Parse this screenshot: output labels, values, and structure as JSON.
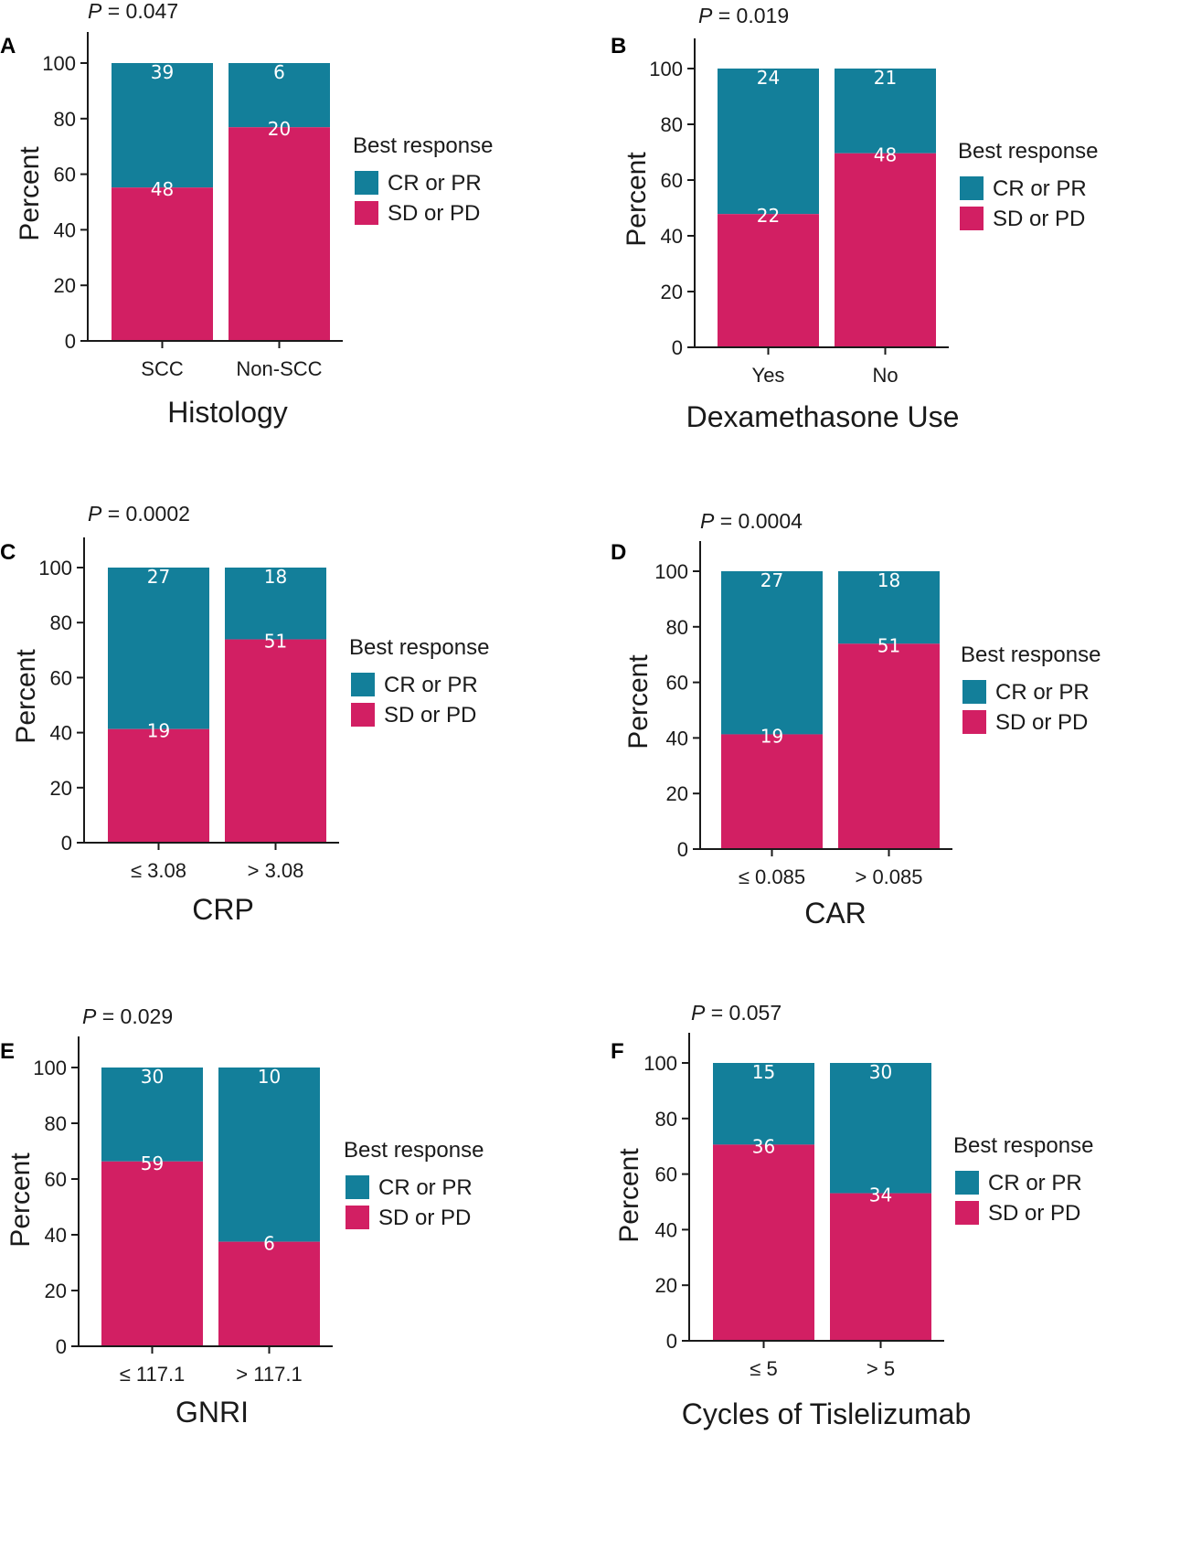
{
  "colors": {
    "cr_pr": "#137f9a",
    "sd_pd": "#d21f63"
  },
  "legend": {
    "title": "Best response",
    "items": [
      "CR or PR",
      "SD or PD"
    ]
  },
  "chart_data": [
    {
      "type": "bar",
      "panel": "A",
      "p_label": "P",
      "p_value": "= 0.047",
      "xlabel": "Histology",
      "ylabel": "Percent",
      "ylim": [
        0,
        110
      ],
      "yticks": [
        0,
        20,
        40,
        60,
        80,
        100
      ],
      "categories": [
        "SCC",
        "Non-SCC"
      ],
      "series": [
        {
          "name": "SD or PD",
          "values": [
            55.2,
            76.9
          ],
          "counts": [
            "48",
            "20"
          ]
        },
        {
          "name": "CR or PR",
          "values": [
            44.8,
            23.1
          ],
          "counts": [
            "39",
            "6"
          ]
        }
      ]
    },
    {
      "type": "bar",
      "panel": "B",
      "p_label": "P",
      "p_value": "= 0.019",
      "xlabel": "Dexamethasone Use",
      "ylabel": "Percent",
      "ylim": [
        0,
        110
      ],
      "yticks": [
        0,
        20,
        40,
        60,
        80,
        100
      ],
      "categories": [
        "Yes",
        "No"
      ],
      "series": [
        {
          "name": "SD or PD",
          "values": [
            47.8,
            69.6
          ],
          "counts": [
            "22",
            "48"
          ]
        },
        {
          "name": "CR or PR",
          "values": [
            52.2,
            30.4
          ],
          "counts": [
            "24",
            "21"
          ]
        }
      ]
    },
    {
      "type": "bar",
      "panel": "C",
      "p_label": "P",
      "p_value": "= 0.0002",
      "xlabel": "CRP",
      "ylabel": "Percent",
      "ylim": [
        0,
        110
      ],
      "yticks": [
        0,
        20,
        40,
        60,
        80,
        100
      ],
      "categories": [
        "≤ 3.08",
        "> 3.08"
      ],
      "series": [
        {
          "name": "SD or PD",
          "values": [
            41.3,
            73.9
          ],
          "counts": [
            "19",
            "51"
          ]
        },
        {
          "name": "CR or PR",
          "values": [
            58.7,
            26.1
          ],
          "counts": [
            "27",
            "18"
          ]
        }
      ]
    },
    {
      "type": "bar",
      "panel": "D",
      "p_label": "P",
      "p_value": "= 0.0004",
      "xlabel": "CAR",
      "ylabel": "Percent",
      "ylim": [
        0,
        110
      ],
      "yticks": [
        0,
        20,
        40,
        60,
        80,
        100
      ],
      "categories": [
        "≤ 0.085",
        "> 0.085"
      ],
      "series": [
        {
          "name": "SD or PD",
          "values": [
            41.3,
            73.9
          ],
          "counts": [
            "19",
            "51"
          ]
        },
        {
          "name": "CR or PR",
          "values": [
            58.7,
            26.1
          ],
          "counts": [
            "27",
            "18"
          ]
        }
      ]
    },
    {
      "type": "bar",
      "panel": "E",
      "p_label": "P",
      "p_value": "= 0.029",
      "xlabel": "GNRI",
      "ylabel": "Percent",
      "ylim": [
        0,
        110
      ],
      "yticks": [
        0,
        20,
        40,
        60,
        80,
        100
      ],
      "categories": [
        "≤ 117.1",
        "> 117.1"
      ],
      "series": [
        {
          "name": "SD or PD",
          "values": [
            66.3,
            37.5
          ],
          "counts": [
            "59",
            "6"
          ]
        },
        {
          "name": "CR or PR",
          "values": [
            33.7,
            62.5
          ],
          "counts": [
            "30",
            "10"
          ]
        }
      ]
    },
    {
      "type": "bar",
      "panel": "F",
      "p_label": "P",
      "p_value": "= 0.057",
      "xlabel": "Cycles of Tislelizumab",
      "ylabel": "Percent",
      "ylim": [
        0,
        110
      ],
      "yticks": [
        0,
        20,
        40,
        60,
        80,
        100
      ],
      "categories": [
        "≤ 5",
        "> 5"
      ],
      "series": [
        {
          "name": "SD or PD",
          "values": [
            70.6,
            53.1
          ],
          "counts": [
            "36",
            "34"
          ]
        },
        {
          "name": "CR or PR",
          "values": [
            29.4,
            46.9
          ],
          "counts": [
            "15",
            "30"
          ]
        }
      ]
    }
  ]
}
